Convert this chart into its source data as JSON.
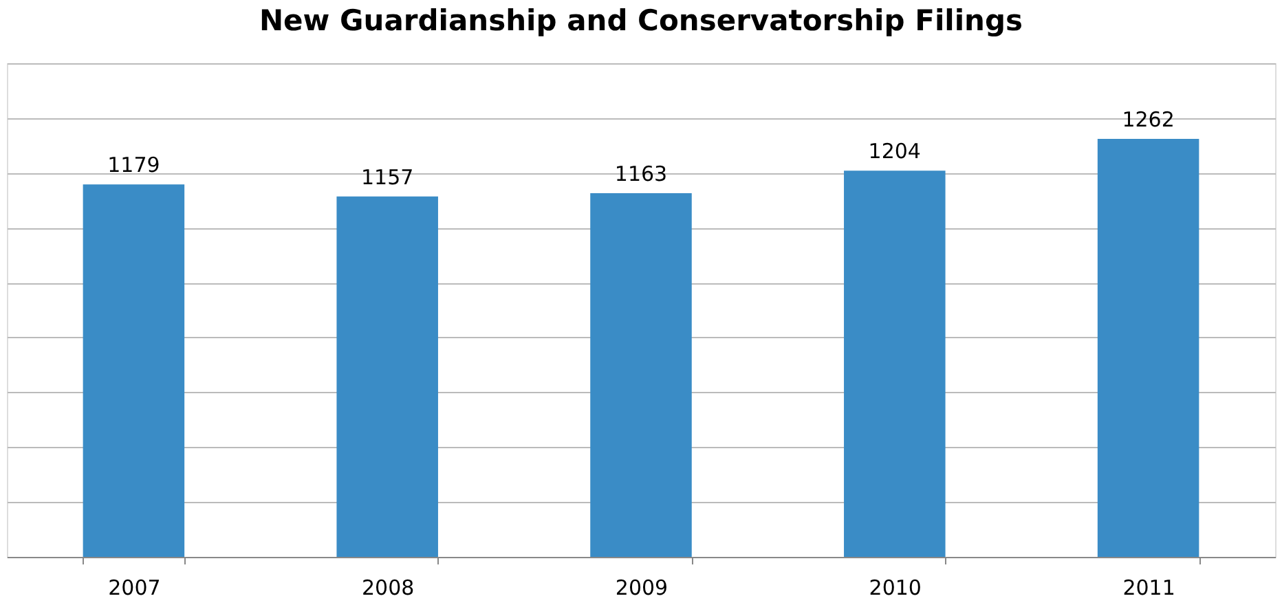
{
  "chart_data": {
    "type": "bar",
    "title": "New Guardianship and Conservatorship Filings",
    "categories": [
      "2007",
      "2008",
      "2009",
      "2010",
      "2011"
    ],
    "values": [
      1179,
      1157,
      1163,
      1204,
      1262
    ],
    "color": "#3a8cc6",
    "ylim": [
      500,
      1400
    ],
    "grid": "y",
    "tick_labels": "x",
    "data_labels": true
  }
}
